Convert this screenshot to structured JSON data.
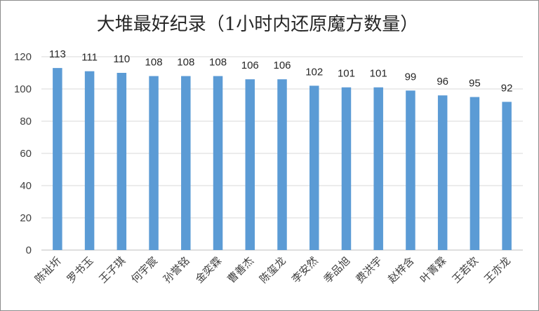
{
  "chart_data": {
    "type": "bar",
    "title": "大堆最好纪录（1小时内还原魔方数量）",
    "xlabel": "",
    "ylabel": "",
    "ylim": [
      0,
      120
    ],
    "yticks": [
      0,
      20,
      40,
      60,
      80,
      100,
      120
    ],
    "grid": true,
    "legend": "none",
    "bar_color": "#5b9bd5",
    "categories": [
      "陈祉圻",
      "罗书玉",
      "王子琪",
      "何宇宸",
      "孙誉铭",
      "金奕霖",
      "曹善杰",
      "陈玺龙",
      "李安然",
      "季品旭",
      "费洪宇",
      "赵梓含",
      "叶菁霖",
      "王若钦",
      "王亦龙"
    ],
    "values": [
      113,
      111,
      110,
      108,
      108,
      108,
      106,
      106,
      102,
      101,
      101,
      99,
      96,
      95,
      92
    ]
  }
}
